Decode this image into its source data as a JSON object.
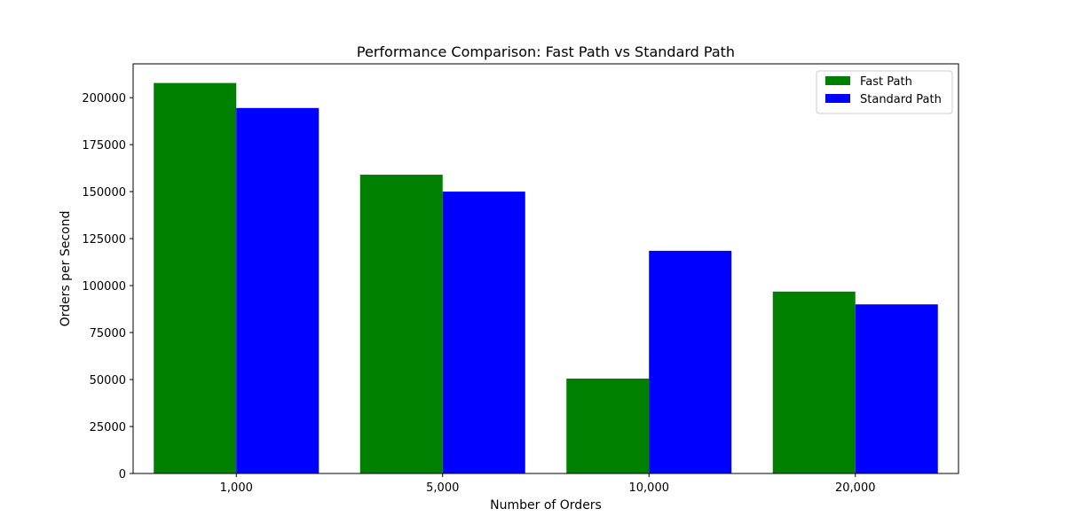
{
  "chart_data": {
    "type": "bar",
    "title": "Performance Comparison: Fast Path vs Standard Path",
    "xlabel": "Number of Orders",
    "ylabel": "Orders per Second",
    "categories": [
      "1,000",
      "5,000",
      "10,000",
      "20,000"
    ],
    "ylim": [
      0,
      218000
    ],
    "yticks": [
      0,
      25000,
      50000,
      75000,
      100000,
      125000,
      150000,
      175000,
      200000
    ],
    "series": [
      {
        "name": "Fast Path",
        "color": "#008000",
        "values": [
          207800,
          159000,
          50500,
          96800
        ]
      },
      {
        "name": "Standard Path",
        "color": "#0000ff",
        "values": [
          194500,
          150000,
          118500,
          90000
        ]
      }
    ],
    "grid": false,
    "legend_position": "top-right"
  }
}
